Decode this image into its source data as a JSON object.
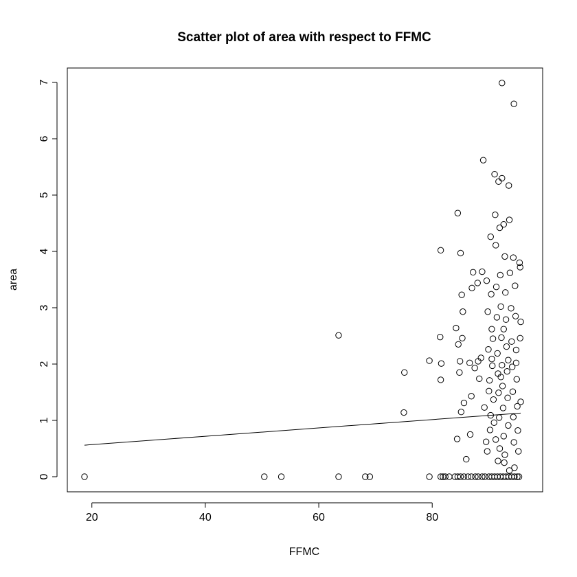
{
  "chart_data": {
    "type": "scatter",
    "title": "Scatter plot of area with respect to FFMC",
    "xlabel": "FFMC",
    "ylabel": "area",
    "xlim": [
      18.7,
      96.2
    ],
    "ylim": [
      0,
      7
    ],
    "x_ticks": [
      20,
      40,
      60,
      80
    ],
    "y_ticks": [
      0,
      1,
      2,
      3,
      4,
      5,
      6,
      7
    ],
    "grid": false,
    "series": [
      {
        "points": [
          [
            18.7,
            0
          ],
          [
            50.4,
            0
          ],
          [
            53.4,
            0
          ],
          [
            63.5,
            0
          ],
          [
            68.2,
            0
          ],
          [
            69.0,
            0
          ],
          [
            79.5,
            0
          ],
          [
            81.5,
            0
          ],
          [
            81.9,
            0
          ],
          [
            82.3,
            0
          ],
          [
            83.0,
            0
          ],
          [
            84.0,
            0
          ],
          [
            84.5,
            0
          ],
          [
            85.0,
            0
          ],
          [
            85.6,
            0
          ],
          [
            86.3,
            0
          ],
          [
            86.9,
            0
          ],
          [
            87.6,
            0
          ],
          [
            88.1,
            0
          ],
          [
            88.8,
            0
          ],
          [
            89.3,
            0
          ],
          [
            90.0,
            0
          ],
          [
            90.5,
            0
          ],
          [
            91.0,
            0
          ],
          [
            91.5,
            0
          ],
          [
            92.0,
            0
          ],
          [
            92.5,
            0
          ],
          [
            93.0,
            0
          ],
          [
            93.5,
            0
          ],
          [
            94.0,
            0
          ],
          [
            94.5,
            0
          ],
          [
            95.0,
            0
          ],
          [
            95.3,
            0
          ],
          [
            63.5,
            2.51
          ],
          [
            75.0,
            1.14
          ],
          [
            75.1,
            1.85
          ],
          [
            79.5,
            2.06
          ],
          [
            81.5,
            4.02
          ],
          [
            81.4,
            2.48
          ],
          [
            81.6,
            2.01
          ],
          [
            81.5,
            1.72
          ],
          [
            84.2,
            2.64
          ],
          [
            84.5,
            4.68
          ],
          [
            84.6,
            2.35
          ],
          [
            84.8,
            1.85
          ],
          [
            84.9,
            2.05
          ],
          [
            85.0,
            3.97
          ],
          [
            85.2,
            3.23
          ],
          [
            85.3,
            2.46
          ],
          [
            85.1,
            1.15
          ],
          [
            84.4,
            0.67
          ],
          [
            85.4,
            2.93
          ],
          [
            85.6,
            1.31
          ],
          [
            86.0,
            0.31
          ],
          [
            86.7,
            0.75
          ],
          [
            86.6,
            2.02
          ],
          [
            86.9,
            1.43
          ],
          [
            87.0,
            3.35
          ],
          [
            87.2,
            3.63
          ],
          [
            87.5,
            1.93
          ],
          [
            88.0,
            3.44
          ],
          [
            88.1,
            2.05
          ],
          [
            88.3,
            1.74
          ],
          [
            88.6,
            2.11
          ],
          [
            89.0,
            5.62
          ],
          [
            88.8,
            3.64
          ],
          [
            89.2,
            1.23
          ],
          [
            89.5,
            0.62
          ],
          [
            89.6,
            3.48
          ],
          [
            89.8,
            2.93
          ],
          [
            89.9,
            2.26
          ],
          [
            90.1,
            1.71
          ],
          [
            90.0,
            1.52
          ],
          [
            90.2,
            0.83
          ],
          [
            90.3,
            4.26
          ],
          [
            90.4,
            3.24
          ],
          [
            90.5,
            2.62
          ],
          [
            90.7,
            2.45
          ],
          [
            90.6,
            1.97
          ],
          [
            90.8,
            1.37
          ],
          [
            90.9,
            0.96
          ],
          [
            91.0,
            5.37
          ],
          [
            91.1,
            4.65
          ],
          [
            91.2,
            4.11
          ],
          [
            91.3,
            3.37
          ],
          [
            91.4,
            2.83
          ],
          [
            91.5,
            2.19
          ],
          [
            91.6,
            1.83
          ],
          [
            91.7,
            1.49
          ],
          [
            91.8,
            1.05
          ],
          [
            91.9,
            0.5
          ],
          [
            91.7,
            5.24
          ],
          [
            91.9,
            4.42
          ],
          [
            92.0,
            3.58
          ],
          [
            92.1,
            3.02
          ],
          [
            92.2,
            2.47
          ],
          [
            92.3,
            1.98
          ],
          [
            92.4,
            1.61
          ],
          [
            92.5,
            1.22
          ],
          [
            92.6,
            0.72
          ],
          [
            92.7,
            0.25
          ],
          [
            92.3,
            6.99
          ],
          [
            92.3,
            5.3
          ],
          [
            92.6,
            4.48
          ],
          [
            92.8,
            3.91
          ],
          [
            92.9,
            3.27
          ],
          [
            93.0,
            2.79
          ],
          [
            93.1,
            2.31
          ],
          [
            93.2,
            1.87
          ],
          [
            93.3,
            1.4
          ],
          [
            93.4,
            0.91
          ],
          [
            93.5,
            5.17
          ],
          [
            93.6,
            4.56
          ],
          [
            93.7,
            3.62
          ],
          [
            93.9,
            2.99
          ],
          [
            94.0,
            2.4
          ],
          [
            94.1,
            1.95
          ],
          [
            94.2,
            1.51
          ],
          [
            94.3,
            1.06
          ],
          [
            94.4,
            0.61
          ],
          [
            94.5,
            0.16
          ],
          [
            94.4,
            6.62
          ],
          [
            94.3,
            3.89
          ],
          [
            94.6,
            3.39
          ],
          [
            94.7,
            2.85
          ],
          [
            94.8,
            2.25
          ],
          [
            94.9,
            1.73
          ],
          [
            95.0,
            1.25
          ],
          [
            95.1,
            0.82
          ],
          [
            95.2,
            0.45
          ],
          [
            95.4,
            3.8
          ],
          [
            95.5,
            3.72
          ],
          [
            95.6,
            2.75
          ],
          [
            95.5,
            2.46
          ],
          [
            95.6,
            1.33
          ],
          [
            94.8,
            2.02
          ],
          [
            90.3,
            1.09
          ],
          [
            91.2,
            0.66
          ],
          [
            92.8,
            0.39
          ],
          [
            93.6,
            0.11
          ],
          [
            91.6,
            0.28
          ],
          [
            89.7,
            0.45
          ],
          [
            90.5,
            2.09
          ],
          [
            92.1,
            1.77
          ],
          [
            93.4,
            2.07
          ],
          [
            92.6,
            2.62
          ]
        ]
      }
    ],
    "fit_line": {
      "type": "linear",
      "x_range": [
        18.7,
        95.6
      ],
      "y_range": [
        0.56,
        1.13
      ]
    }
  }
}
